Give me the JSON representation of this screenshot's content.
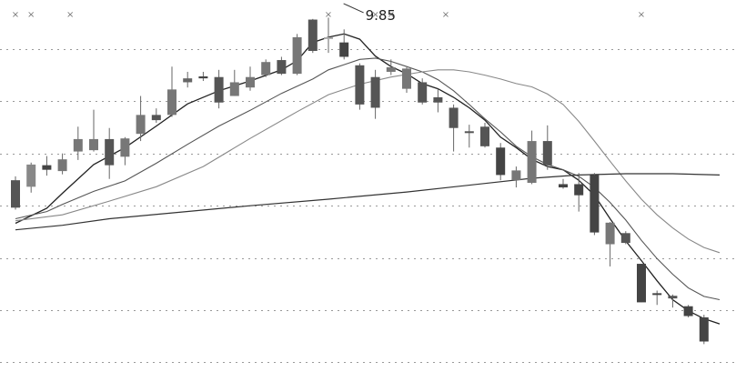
{
  "chart_data": {
    "type": "candlestick",
    "title": "",
    "xlabel": "",
    "ylabel": "",
    "grid": "horizontal-dotted",
    "legend": "none",
    "ylim": [
      4.3,
      10.15
    ],
    "xlim": [
      0,
      47
    ],
    "gridlines": [
      4.6,
      5.4,
      6.2,
      7.0,
      7.8,
      8.6,
      9.4
    ],
    "annotation": {
      "text": "9.85",
      "x": 21.2,
      "y": 9.9
    },
    "top_marks": {
      "symbol": "×",
      "x": [
        0,
        1,
        3.5,
        20,
        23,
        24,
        27.5,
        40
      ]
    },
    "candles": [
      {
        "o": 6.97,
        "c": 7.39,
        "h": 7.45,
        "l": 6.94,
        "color": "#555555"
      },
      {
        "o": 7.29,
        "c": 7.63,
        "h": 7.66,
        "l": 7.2,
        "color": "#888888"
      },
      {
        "o": 7.55,
        "c": 7.62,
        "h": 7.76,
        "l": 7.46,
        "color": "#444444"
      },
      {
        "o": 7.53,
        "c": 7.71,
        "h": 7.8,
        "l": 7.48,
        "color": "#777777"
      },
      {
        "o": 7.83,
        "c": 8.02,
        "h": 8.21,
        "l": 7.7,
        "color": "#777777"
      },
      {
        "o": 7.85,
        "c": 8.02,
        "h": 8.47,
        "l": 7.83,
        "color": "#777777"
      },
      {
        "o": 8.02,
        "c": 7.62,
        "h": 8.19,
        "l": 7.41,
        "color": "#555555"
      },
      {
        "o": 7.75,
        "c": 8.03,
        "h": 8.05,
        "l": 7.62,
        "color": "#777777"
      },
      {
        "o": 8.1,
        "c": 8.39,
        "h": 8.68,
        "l": 7.99,
        "color": "#777777"
      },
      {
        "o": 8.31,
        "c": 8.39,
        "h": 8.49,
        "l": 8.27,
        "color": "#555555"
      },
      {
        "o": 8.39,
        "c": 8.78,
        "h": 9.13,
        "l": 8.36,
        "color": "#777777"
      },
      {
        "o": 8.89,
        "c": 8.95,
        "h": 9.05,
        "l": 8.81,
        "color": "#666666"
      },
      {
        "o": 8.95,
        "c": 8.98,
        "h": 9.05,
        "l": 8.91,
        "color": "#444444"
      },
      {
        "o": 8.97,
        "c": 8.58,
        "h": 9.08,
        "l": 8.49,
        "color": "#555555"
      },
      {
        "o": 8.68,
        "c": 8.89,
        "h": 9.08,
        "l": 8.68,
        "color": "#777777"
      },
      {
        "o": 8.81,
        "c": 8.97,
        "h": 9.13,
        "l": 8.76,
        "color": "#777777"
      },
      {
        "o": 9.0,
        "c": 9.2,
        "h": 9.24,
        "l": 8.97,
        "color": "#777777"
      },
      {
        "o": 9.23,
        "c": 9.02,
        "h": 9.28,
        "l": 9.0,
        "color": "#555555"
      },
      {
        "o": 9.02,
        "c": 9.58,
        "h": 9.63,
        "l": 9.0,
        "color": "#777777"
      },
      {
        "o": 9.37,
        "c": 9.85,
        "h": 9.86,
        "l": 9.34,
        "color": "#555555"
      },
      {
        "o": 9.56,
        "c": 9.58,
        "h": 9.88,
        "l": 9.34,
        "color": "#aaaaaa"
      },
      {
        "o": 9.5,
        "c": 9.28,
        "h": 9.7,
        "l": 9.24,
        "color": "#444444"
      },
      {
        "o": 9.15,
        "c": 8.55,
        "h": 9.18,
        "l": 8.47,
        "color": "#555555"
      },
      {
        "o": 8.97,
        "c": 8.5,
        "h": 9.08,
        "l": 8.33,
        "color": "#555555"
      },
      {
        "o": 9.05,
        "c": 9.12,
        "h": 9.24,
        "l": 9.0,
        "color": "#777777"
      },
      {
        "o": 9.1,
        "c": 8.79,
        "h": 9.12,
        "l": 8.73,
        "color": "#777777"
      },
      {
        "o": 8.89,
        "c": 8.58,
        "h": 8.95,
        "l": 8.55,
        "color": "#555555"
      },
      {
        "o": 8.66,
        "c": 8.58,
        "h": 8.79,
        "l": 8.43,
        "color": "#555555"
      },
      {
        "o": 8.5,
        "c": 8.19,
        "h": 8.55,
        "l": 7.83,
        "color": "#555555"
      },
      {
        "o": 8.13,
        "c": 8.14,
        "h": 8.24,
        "l": 7.89,
        "color": "#555555"
      },
      {
        "o": 8.21,
        "c": 7.91,
        "h": 8.27,
        "l": 7.89,
        "color": "#555555"
      },
      {
        "o": 7.89,
        "c": 7.47,
        "h": 7.96,
        "l": 7.39,
        "color": "#444444"
      },
      {
        "o": 7.54,
        "c": 7.39,
        "h": 7.6,
        "l": 7.28,
        "color": "#777777"
      },
      {
        "o": 7.35,
        "c": 7.99,
        "h": 8.15,
        "l": 7.33,
        "color": "#777777"
      },
      {
        "o": 7.99,
        "c": 7.62,
        "h": 8.23,
        "l": 7.55,
        "color": "#555555"
      },
      {
        "o": 7.33,
        "c": 7.28,
        "h": 7.41,
        "l": 7.26,
        "color": "#444444"
      },
      {
        "o": 7.33,
        "c": 7.16,
        "h": 7.5,
        "l": 6.91,
        "color": "#444444"
      },
      {
        "o": 7.47,
        "c": 6.59,
        "h": 7.5,
        "l": 6.55,
        "color": "#444444"
      },
      {
        "o": 6.74,
        "c": 6.41,
        "h": 6.75,
        "l": 6.07,
        "color": "#777777"
      },
      {
        "o": 6.58,
        "c": 6.43,
        "h": 6.61,
        "l": 6.41,
        "color": "#555555"
      },
      {
        "o": 6.11,
        "c": 5.52,
        "h": 6.11,
        "l": 5.52,
        "color": "#444444"
      },
      {
        "o": 5.66,
        "c": 5.66,
        "h": 5.7,
        "l": 5.48,
        "color": "#444444"
      },
      {
        "o": 5.62,
        "c": 5.58,
        "h": 5.64,
        "l": 5.44,
        "color": "#555555"
      },
      {
        "o": 5.46,
        "c": 5.31,
        "h": 5.48,
        "l": 5.29,
        "color": "#444444"
      },
      {
        "o": 5.29,
        "c": 4.92,
        "h": 5.33,
        "l": 4.88,
        "color": "#444444"
      }
    ],
    "series": [
      {
        "color": "#222222",
        "width": 1.3,
        "points": [
          [
            0,
            6.73
          ],
          [
            2,
            6.96
          ],
          [
            3,
            7.19
          ],
          [
            5,
            7.63
          ],
          [
            7,
            7.89
          ],
          [
            9,
            8.22
          ],
          [
            11,
            8.56
          ],
          [
            13,
            8.76
          ],
          [
            15,
            8.91
          ],
          [
            17,
            9.08
          ],
          [
            18,
            9.22
          ],
          [
            19,
            9.5
          ],
          [
            20,
            9.58
          ],
          [
            21,
            9.63
          ],
          [
            22,
            9.55
          ],
          [
            23,
            9.29
          ],
          [
            24,
            9.13
          ],
          [
            25,
            9.02
          ],
          [
            26,
            8.87
          ],
          [
            27,
            8.79
          ],
          [
            28,
            8.66
          ],
          [
            29,
            8.5
          ],
          [
            30,
            8.31
          ],
          [
            31,
            8.05
          ],
          [
            32,
            7.89
          ],
          [
            33,
            7.71
          ],
          [
            34,
            7.6
          ],
          [
            35,
            7.55
          ],
          [
            36,
            7.39
          ],
          [
            37,
            7.16
          ],
          [
            38,
            6.8
          ],
          [
            39,
            6.46
          ],
          [
            40,
            6.16
          ],
          [
            41,
            5.85
          ],
          [
            42,
            5.56
          ],
          [
            43,
            5.39
          ],
          [
            44,
            5.27
          ],
          [
            45,
            5.19
          ]
        ]
      },
      {
        "color": "#555555",
        "width": 1.1,
        "points": [
          [
            0,
            6.8
          ],
          [
            2,
            6.91
          ],
          [
            3,
            7.02
          ],
          [
            5,
            7.22
          ],
          [
            7,
            7.38
          ],
          [
            9,
            7.65
          ],
          [
            11,
            7.94
          ],
          [
            13,
            8.22
          ],
          [
            15,
            8.46
          ],
          [
            17,
            8.72
          ],
          [
            19,
            8.94
          ],
          [
            20,
            9.08
          ],
          [
            21,
            9.16
          ],
          [
            22,
            9.24
          ],
          [
            23,
            9.26
          ],
          [
            24,
            9.21
          ],
          [
            25,
            9.13
          ],
          [
            26,
            9.05
          ],
          [
            27,
            8.93
          ],
          [
            28,
            8.76
          ],
          [
            29,
            8.55
          ],
          [
            30,
            8.33
          ],
          [
            31,
            8.13
          ],
          [
            32,
            7.91
          ],
          [
            33,
            7.75
          ],
          [
            34,
            7.63
          ],
          [
            35,
            7.55
          ],
          [
            36,
            7.45
          ],
          [
            37,
            7.28
          ],
          [
            38,
            7.05
          ],
          [
            39,
            6.78
          ],
          [
            40,
            6.47
          ],
          [
            41,
            6.19
          ],
          [
            42,
            5.95
          ],
          [
            43,
            5.74
          ],
          [
            44,
            5.61
          ],
          [
            45,
            5.56
          ]
        ]
      },
      {
        "color": "#888888",
        "width": 1.1,
        "points": [
          [
            0,
            6.77
          ],
          [
            3,
            6.86
          ],
          [
            6,
            7.07
          ],
          [
            9,
            7.29
          ],
          [
            12,
            7.6
          ],
          [
            15,
            8.03
          ],
          [
            18,
            8.44
          ],
          [
            20,
            8.7
          ],
          [
            22,
            8.86
          ],
          [
            24,
            8.97
          ],
          [
            26,
            9.05
          ],
          [
            27,
            9.08
          ],
          [
            28,
            9.08
          ],
          [
            29,
            9.05
          ],
          [
            30,
            9.0
          ],
          [
            31,
            8.94
          ],
          [
            32,
            8.87
          ],
          [
            33,
            8.82
          ],
          [
            34,
            8.71
          ],
          [
            35,
            8.55
          ],
          [
            36,
            8.29
          ],
          [
            37,
            7.99
          ],
          [
            38,
            7.68
          ],
          [
            39,
            7.38
          ],
          [
            40,
            7.1
          ],
          [
            41,
            6.86
          ],
          [
            42,
            6.66
          ],
          [
            43,
            6.49
          ],
          [
            44,
            6.36
          ],
          [
            45,
            6.28
          ]
        ]
      },
      {
        "color": "#333333",
        "width": 1.2,
        "points": [
          [
            0,
            6.63
          ],
          [
            3,
            6.7
          ],
          [
            6,
            6.8
          ],
          [
            10,
            6.89
          ],
          [
            15,
            7.0
          ],
          [
            20,
            7.1
          ],
          [
            25,
            7.21
          ],
          [
            30,
            7.34
          ],
          [
            33,
            7.42
          ],
          [
            36,
            7.47
          ],
          [
            39,
            7.49
          ],
          [
            42,
            7.49
          ],
          [
            45,
            7.47
          ]
        ]
      }
    ]
  }
}
